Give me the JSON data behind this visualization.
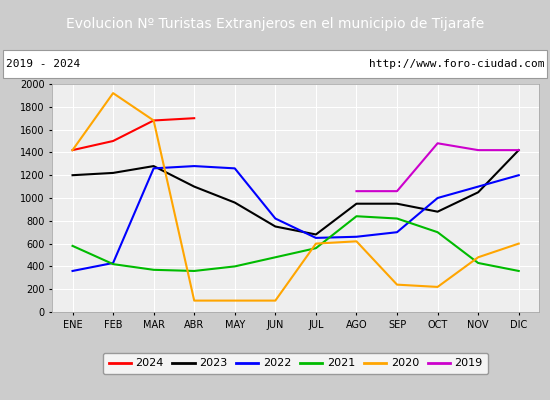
{
  "title": "Evolucion Nº Turistas Extranjeros en el municipio de Tijarafe",
  "subtitle_left": "2019 - 2024",
  "subtitle_right": "http://www.foro-ciudad.com",
  "xlabel_months": [
    "ENE",
    "FEB",
    "MAR",
    "ABR",
    "MAY",
    "JUN",
    "JUL",
    "AGO",
    "SEP",
    "OCT",
    "NOV",
    "DIC"
  ],
  "ylim": [
    0,
    2000
  ],
  "yticks": [
    0,
    200,
    400,
    600,
    800,
    1000,
    1200,
    1400,
    1600,
    1800,
    2000
  ],
  "series": {
    "2024": {
      "color": "#ff0000",
      "values": [
        1420,
        1500,
        1680,
        1700,
        null,
        null,
        null,
        null,
        null,
        null,
        null,
        null
      ]
    },
    "2023": {
      "color": "#000000",
      "values": [
        1200,
        1220,
        1280,
        1100,
        960,
        750,
        680,
        950,
        950,
        880,
        1050,
        1420
      ]
    },
    "2022": {
      "color": "#0000ff",
      "values": [
        360,
        430,
        1260,
        1280,
        1260,
        820,
        650,
        660,
        700,
        1000,
        1100,
        1200
      ]
    },
    "2021": {
      "color": "#00bb00",
      "values": [
        580,
        420,
        370,
        360,
        400,
        480,
        560,
        840,
        820,
        700,
        430,
        360
      ]
    },
    "2020": {
      "color": "#ffa500",
      "values": [
        1420,
        1920,
        1680,
        100,
        100,
        100,
        600,
        620,
        240,
        220,
        480,
        600
      ]
    },
    "2019": {
      "color": "#cc00cc",
      "values": [
        null,
        null,
        null,
        null,
        null,
        null,
        null,
        1060,
        1060,
        1480,
        1420,
        1420
      ]
    }
  },
  "title_bg_color": "#4472c4",
  "title_color": "#ffffff",
  "plot_bg_color": "#eeeeee",
  "grid_color": "#ffffff",
  "fig_bg_color": "#cccccc"
}
